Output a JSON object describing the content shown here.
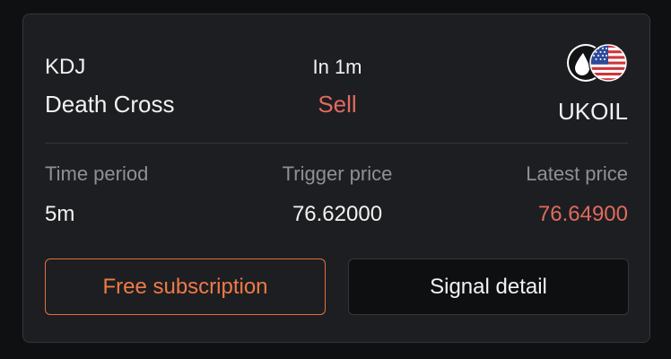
{
  "signal": {
    "indicator": "KDJ",
    "name": "Death Cross",
    "interval": "In 1m",
    "direction": "Sell"
  },
  "asset": {
    "symbol": "UKOIL",
    "icon": "oil-drop-icon",
    "flag_icon": "us-flag-icon"
  },
  "stats": {
    "time_period_label": "Time period",
    "time_period_value": "5m",
    "trigger_price_label": "Trigger price",
    "trigger_price_value": "76.62000",
    "latest_price_label": "Latest price",
    "latest_price_value": "76.64900"
  },
  "actions": {
    "subscribe_label": "Free subscription",
    "detail_label": "Signal detail"
  },
  "colors": {
    "sell": "#e06a5f",
    "accent": "#e2703f",
    "card_bg": "#1d1e21",
    "page_bg": "#0f1012"
  }
}
